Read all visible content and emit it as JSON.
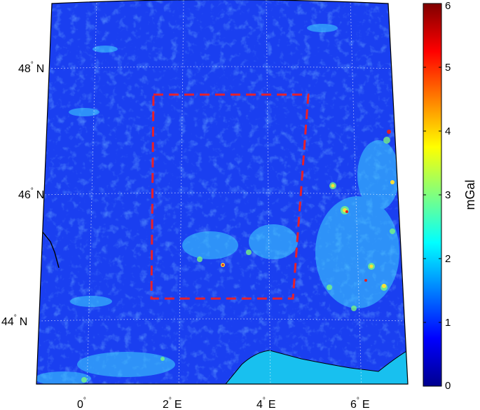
{
  "map": {
    "lat_labels": [
      {
        "value": "48",
        "hemisphere": "N"
      },
      {
        "value": "46",
        "hemisphere": "N"
      },
      {
        "value": "44",
        "hemisphere": "N"
      }
    ],
    "lon_labels": [
      {
        "value": "0",
        "hemisphere": ""
      },
      {
        "value": "2",
        "hemisphere": "E"
      },
      {
        "value": "4",
        "hemisphere": "E"
      },
      {
        "value": "6",
        "hemisphere": "E"
      }
    ],
    "study_area_box_color": "#e8202a",
    "background_color": "#1a3ff0",
    "sea_color": "#18c0ef"
  },
  "colorbar": {
    "unit": "mGal",
    "min": 0,
    "max": 6,
    "ticks": [
      "0",
      "1",
      "2",
      "3",
      "4",
      "5",
      "6"
    ],
    "colormap": "jet"
  }
}
